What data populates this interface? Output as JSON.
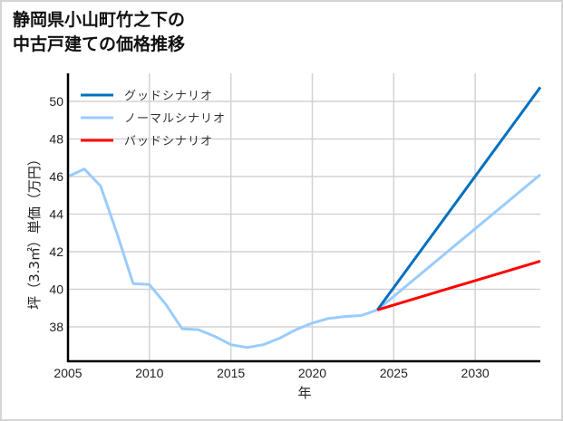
{
  "title": {
    "line1": "静岡県小山町竹之下の",
    "line2": "中古戸建ての価格推移"
  },
  "chart_data": {
    "type": "line",
    "title": "静岡県小山町竹之下の中古戸建ての価格推移",
    "xlabel": "年",
    "ylabel": "坪（3.3㎡）単価（万円）",
    "xlim": [
      2005,
      2034
    ],
    "ylim": [
      36.2,
      51.4
    ],
    "xticks": [
      2005,
      2010,
      2015,
      2020,
      2025,
      2030
    ],
    "yticks": [
      38,
      40,
      42,
      44,
      46,
      48,
      50
    ],
    "grid": true,
    "legend_position": "upper left",
    "series": [
      {
        "name": "グッドシナリオ",
        "color": "#0070c0",
        "x": [
          2024,
          2034
        ],
        "values": [
          38.9,
          50.75
        ]
      },
      {
        "name": "ノーマルシナリオ",
        "color": "#99ccff",
        "x": [
          2005,
          2006,
          2007,
          2008,
          2009,
          2010,
          2011,
          2012,
          2013,
          2014,
          2015,
          2016,
          2017,
          2018,
          2019,
          2020,
          2021,
          2022,
          2023,
          2024,
          2034
        ],
        "values": [
          46.0,
          46.4,
          45.5,
          43.0,
          40.3,
          40.25,
          39.2,
          37.9,
          37.85,
          37.5,
          37.05,
          36.9,
          37.05,
          37.4,
          37.85,
          38.2,
          38.45,
          38.55,
          38.6,
          38.9,
          46.1
        ]
      },
      {
        "name": "バッドシナリオ",
        "color": "#ff0000",
        "x": [
          2024,
          2034
        ],
        "values": [
          38.9,
          41.5
        ]
      }
    ]
  }
}
